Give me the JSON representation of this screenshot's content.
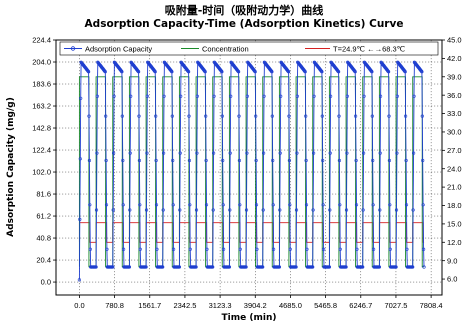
{
  "chart_data": {
    "type": "line",
    "title_cn": "吸附量-时间（吸附动力学）曲线",
    "title": "Adsorption Capacity-Time (Adsorption Kinetics) Curve",
    "xlabel": "Time (min)",
    "ylabel": "Adsorption Capacity (mg/g)",
    "xlim": [
      -520,
      8050
    ],
    "ylim": [
      -12,
      224.4
    ],
    "y2lim": [
      3.4,
      45.0
    ],
    "x_ticks": [
      "0.0",
      "780.8",
      "1561.7",
      "2342.5",
      "3123.3",
      "3904.2",
      "4685.0",
      "5465.8",
      "6246.7",
      "7027.5",
      "7808.4"
    ],
    "y_ticks": [
      "0.0",
      "20.4",
      "40.8",
      "61.2",
      "81.6",
      "102.0",
      "122.4",
      "142.8",
      "163.2",
      "183.6",
      "204.0",
      "224.4"
    ],
    "y2_ticks": [
      "6.0",
      "9.0",
      "12.0",
      "15.0",
      "18.0",
      "21.0",
      "24.0",
      "27.0",
      "30.0",
      "33.0",
      "36.0",
      "39.0",
      "42.0",
      "45.0"
    ],
    "grid": true,
    "legend_position": "top",
    "cycles": {
      "count": 21,
      "start": 0,
      "period": 370
    },
    "series": [
      {
        "name": "Adsorption Capacity",
        "color": "#1f3fd0",
        "marker": "open-circle",
        "peak": 204.0,
        "trough": 14.0
      },
      {
        "name": "Concentration",
        "color": "#1a8a2a",
        "high": 39.0,
        "low": 8.0
      },
      {
        "name": "T=24.9℃ ←→68.3℃",
        "color": "#d42020",
        "high": 15.2,
        "low": 12.0,
        "unit": "℃"
      }
    ]
  }
}
